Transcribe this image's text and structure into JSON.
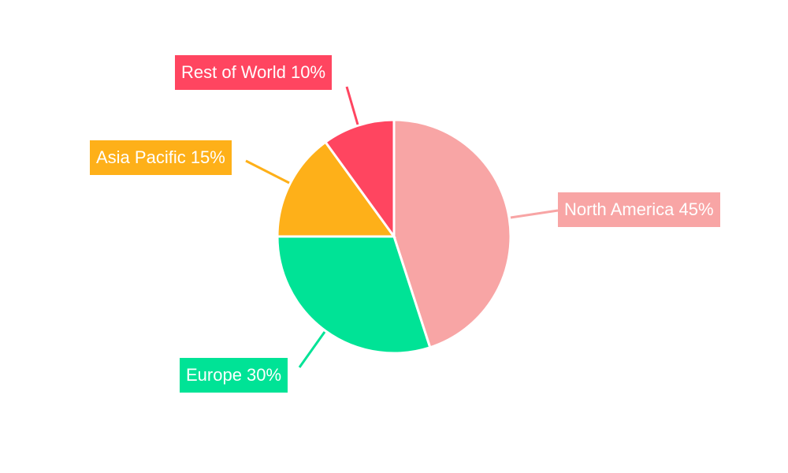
{
  "chart_data": {
    "type": "pie",
    "start_angle": "top, clockwise",
    "legend": "none",
    "slices": [
      {
        "label": "North America",
        "value": 45,
        "display": "North America 45%",
        "color": "#F8A5A5"
      },
      {
        "label": "Europe",
        "value": 30,
        "display": "Europe 30%",
        "color": "#00E396"
      },
      {
        "label": "Asia Pacific",
        "value": 15,
        "display": "Asia Pacific 15%",
        "color": "#FEB019"
      },
      {
        "label": "Rest of World",
        "value": 10,
        "display": "Rest of World 10%",
        "color": "#FF4560"
      }
    ]
  }
}
